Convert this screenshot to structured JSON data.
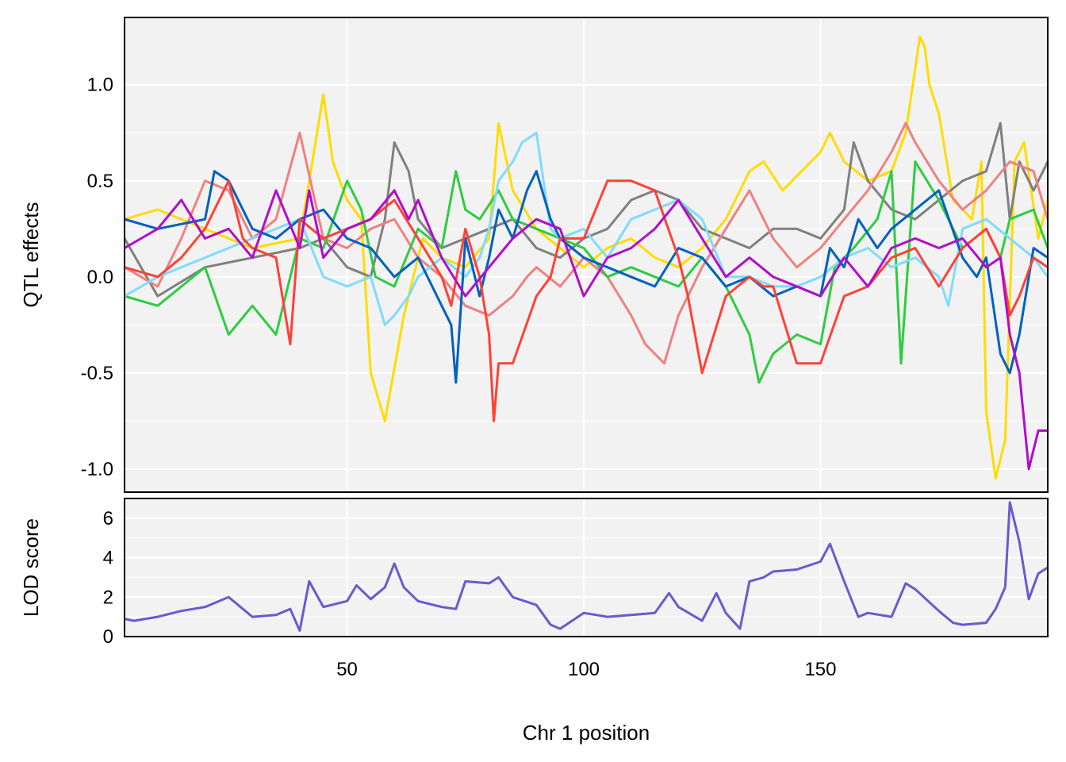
{
  "chart_data": [
    {
      "type": "line",
      "title": "",
      "xlabel": "",
      "ylabel": "QTL effects",
      "xlim": [
        3,
        198
      ],
      "ylim": [
        -1.12,
        1.35
      ],
      "yticks": [
        1.0,
        0.5,
        0.0,
        -0.5,
        -1.0
      ],
      "ytick_labels": [
        "1.0",
        "0.5",
        "0.0",
        "-0.5",
        "-1.0"
      ],
      "grid": true,
      "legend": "none",
      "series": [
        {
          "color": "#FFDC00",
          "x": [
            3,
            10,
            20,
            30,
            40,
            43,
            45,
            47,
            50,
            53,
            55,
            58,
            62,
            66,
            70,
            75,
            80,
            82,
            85,
            90,
            95,
            100,
            105,
            110,
            115,
            120,
            125,
            130,
            133,
            135,
            138,
            142,
            146,
            150,
            152,
            155,
            160,
            165,
            168,
            171,
            172,
            173,
            175,
            178,
            182,
            184,
            185,
            187,
            189,
            191,
            193,
            196,
            198
          ],
          "y": [
            0.3,
            0.35,
            0.25,
            0.15,
            0.2,
            0.65,
            0.95,
            0.6,
            0.4,
            0.3,
            -0.5,
            -0.75,
            -0.2,
            0.2,
            0.1,
            0.05,
            0.2,
            0.8,
            0.45,
            0.25,
            0.15,
            0.05,
            0.15,
            0.2,
            0.1,
            0.05,
            0.15,
            0.3,
            0.45,
            0.55,
            0.6,
            0.45,
            0.55,
            0.65,
            0.75,
            0.6,
            0.5,
            0.55,
            0.75,
            1.25,
            1.2,
            1.0,
            0.85,
            0.4,
            0.3,
            0.6,
            -0.7,
            -1.05,
            -0.85,
            0.6,
            0.7,
            0.2,
            0.4
          ]
        },
        {
          "color": "#808080",
          "x": [
            3,
            10,
            20,
            30,
            40,
            45,
            50,
            55,
            58,
            60,
            63,
            65,
            70,
            75,
            80,
            85,
            90,
            95,
            100,
            105,
            110,
            115,
            120,
            125,
            130,
            135,
            140,
            145,
            150,
            155,
            157,
            160,
            165,
            170,
            175,
            180,
            185,
            188,
            190,
            192,
            195,
            198
          ],
          "y": [
            0.2,
            -0.1,
            0.05,
            0.1,
            0.15,
            0.2,
            0.05,
            0.0,
            0.3,
            0.7,
            0.55,
            0.3,
            0.15,
            0.2,
            0.25,
            0.3,
            0.15,
            0.1,
            0.2,
            0.25,
            0.4,
            0.45,
            0.4,
            0.25,
            0.2,
            0.15,
            0.25,
            0.25,
            0.2,
            0.35,
            0.7,
            0.5,
            0.35,
            0.3,
            0.4,
            0.5,
            0.55,
            0.8,
            0.3,
            0.6,
            0.45,
            0.6
          ]
        },
        {
          "color": "#F08080",
          "x": [
            3,
            10,
            15,
            20,
            25,
            30,
            35,
            40,
            45,
            50,
            55,
            60,
            65,
            70,
            75,
            80,
            85,
            88,
            90,
            95,
            100,
            105,
            110,
            113,
            117,
            120,
            125,
            130,
            135,
            140,
            145,
            150,
            155,
            160,
            165,
            168,
            170,
            175,
            180,
            185,
            190,
            195,
            198
          ],
          "y": [
            0.05,
            -0.05,
            0.2,
            0.5,
            0.45,
            0.2,
            0.3,
            0.75,
            0.2,
            0.15,
            0.25,
            0.3,
            0.1,
            0.0,
            -0.15,
            -0.2,
            -0.1,
            0.0,
            0.05,
            -0.05,
            0.1,
            0.0,
            -0.2,
            -0.35,
            -0.45,
            -0.2,
            0.05,
            0.25,
            0.45,
            0.2,
            0.05,
            0.15,
            0.3,
            0.45,
            0.65,
            0.8,
            0.7,
            0.5,
            0.35,
            0.45,
            0.6,
            0.55,
            0.3
          ]
        },
        {
          "color": "#2ECC40",
          "x": [
            3,
            10,
            20,
            25,
            30,
            35,
            40,
            45,
            50,
            53,
            56,
            60,
            65,
            70,
            73,
            75,
            78,
            82,
            85,
            90,
            95,
            100,
            105,
            110,
            115,
            120,
            125,
            130,
            135,
            137,
            140,
            145,
            150,
            153,
            157,
            162,
            165,
            167,
            170,
            175,
            180,
            185,
            188,
            190,
            195,
            198
          ],
          "y": [
            -0.1,
            -0.15,
            0.05,
            -0.3,
            -0.15,
            -0.3,
            0.2,
            0.15,
            0.5,
            0.35,
            0.0,
            -0.05,
            0.25,
            0.15,
            0.55,
            0.35,
            0.3,
            0.45,
            0.3,
            0.25,
            0.2,
            0.15,
            0.0,
            0.05,
            0.0,
            -0.05,
            0.1,
            -0.05,
            -0.3,
            -0.55,
            -0.4,
            -0.3,
            -0.35,
            0.05,
            0.15,
            0.3,
            0.55,
            -0.45,
            0.6,
            0.4,
            0.15,
            0.25,
            0.1,
            0.3,
            0.35,
            0.15
          ]
        },
        {
          "color": "#7FDBFF",
          "x": [
            3,
            10,
            20,
            30,
            40,
            45,
            50,
            55,
            58,
            60,
            63,
            65,
            70,
            75,
            78,
            80,
            82,
            85,
            87,
            90,
            93,
            95,
            100,
            105,
            110,
            115,
            120,
            125,
            130,
            135,
            140,
            145,
            150,
            155,
            160,
            165,
            170,
            175,
            177,
            180,
            185,
            190,
            195,
            198
          ],
          "y": [
            -0.1,
            0.0,
            0.1,
            0.2,
            0.3,
            0.0,
            -0.05,
            0.0,
            -0.25,
            -0.2,
            -0.1,
            0.0,
            0.1,
            0.0,
            0.1,
            0.25,
            0.5,
            0.6,
            0.7,
            0.75,
            0.25,
            0.2,
            0.25,
            0.1,
            0.3,
            0.35,
            0.4,
            0.3,
            0.0,
            0.0,
            -0.05,
            -0.05,
            0.0,
            0.1,
            0.15,
            0.05,
            0.1,
            0.0,
            -0.15,
            0.25,
            0.3,
            0.2,
            0.1,
            0.0
          ]
        },
        {
          "color": "#0060C0",
          "x": [
            3,
            10,
            20,
            22,
            25,
            30,
            35,
            40,
            45,
            50,
            55,
            60,
            65,
            70,
            72,
            73,
            75,
            78,
            80,
            82,
            85,
            88,
            90,
            93,
            95,
            100,
            105,
            110,
            115,
            120,
            125,
            130,
            135,
            140,
            145,
            150,
            152,
            155,
            158,
            162,
            165,
            170,
            175,
            180,
            183,
            185,
            188,
            190,
            192,
            195,
            198
          ],
          "y": [
            0.3,
            0.25,
            0.3,
            0.55,
            0.5,
            0.25,
            0.2,
            0.3,
            0.35,
            0.2,
            0.15,
            0.0,
            0.1,
            -0.15,
            -0.25,
            -0.55,
            0.2,
            -0.1,
            0.1,
            0.35,
            0.2,
            0.45,
            0.55,
            0.3,
            0.2,
            0.1,
            0.05,
            0.0,
            -0.05,
            0.15,
            0.1,
            -0.05,
            0.0,
            -0.1,
            -0.05,
            -0.1,
            0.15,
            0.05,
            0.3,
            0.15,
            0.25,
            0.35,
            0.45,
            0.1,
            0.0,
            0.1,
            -0.4,
            -0.5,
            -0.3,
            0.15,
            0.1
          ]
        },
        {
          "color": "#FF4136",
          "x": [
            3,
            10,
            15,
            20,
            25,
            28,
            30,
            35,
            38,
            40,
            45,
            50,
            55,
            60,
            65,
            70,
            72,
            75,
            78,
            80,
            81,
            82,
            85,
            90,
            93,
            95,
            100,
            105,
            110,
            115,
            120,
            122,
            125,
            130,
            135,
            138,
            140,
            145,
            150,
            155,
            160,
            165,
            170,
            175,
            180,
            185,
            188,
            190,
            192,
            195,
            198
          ],
          "y": [
            0.05,
            0.0,
            0.1,
            0.25,
            0.5,
            0.2,
            0.15,
            0.1,
            -0.35,
            0.3,
            0.2,
            0.25,
            0.3,
            0.4,
            0.2,
            0.0,
            -0.15,
            0.25,
            0.0,
            -0.3,
            -0.75,
            -0.45,
            -0.45,
            -0.1,
            0.0,
            0.2,
            0.2,
            0.5,
            0.5,
            0.45,
            0.1,
            -0.1,
            -0.5,
            -0.1,
            0.0,
            -0.05,
            -0.05,
            -0.45,
            -0.45,
            -0.1,
            -0.05,
            0.1,
            0.15,
            -0.05,
            0.15,
            0.25,
            0.1,
            -0.2,
            -0.1,
            0.1,
            0.05
          ]
        },
        {
          "color": "#B10DC9",
          "x": [
            3,
            10,
            15,
            20,
            25,
            30,
            35,
            40,
            42,
            45,
            50,
            55,
            60,
            63,
            65,
            70,
            75,
            80,
            85,
            90,
            95,
            100,
            105,
            110,
            115,
            120,
            125,
            130,
            135,
            140,
            145,
            150,
            155,
            160,
            165,
            170,
            175,
            180,
            185,
            188,
            190,
            192,
            194,
            196,
            198
          ],
          "y": [
            0.15,
            0.25,
            0.4,
            0.2,
            0.25,
            0.1,
            0.45,
            0.15,
            0.45,
            0.1,
            0.25,
            0.3,
            0.45,
            0.3,
            0.4,
            0.1,
            -0.1,
            0.05,
            0.2,
            0.3,
            0.25,
            -0.1,
            0.1,
            0.15,
            0.25,
            0.4,
            0.2,
            0.0,
            0.1,
            0.0,
            -0.05,
            -0.1,
            0.1,
            -0.05,
            0.15,
            0.2,
            0.15,
            0.2,
            0.05,
            0.1,
            -0.3,
            -0.5,
            -1.0,
            -0.8,
            -0.8
          ]
        }
      ]
    },
    {
      "type": "line",
      "title": "",
      "xlabel": "Chr 1 position",
      "ylabel": "LOD score",
      "xlim": [
        3,
        198
      ],
      "ylim": [
        0,
        7
      ],
      "xticks": [
        50,
        100,
        150
      ],
      "xtick_labels": [
        "50",
        "100",
        "150"
      ],
      "yticks": [
        0,
        2,
        4,
        6
      ],
      "ytick_labels": [
        "0",
        "2",
        "4",
        "6"
      ],
      "grid": true,
      "legend": "none",
      "series": [
        {
          "color": "#6A5ACD",
          "x": [
            3,
            5,
            10,
            15,
            20,
            25,
            30,
            35,
            38,
            40,
            42,
            45,
            50,
            52,
            55,
            58,
            60,
            62,
            65,
            70,
            73,
            75,
            80,
            82,
            85,
            90,
            93,
            95,
            100,
            105,
            110,
            115,
            118,
            120,
            125,
            128,
            130,
            133,
            135,
            138,
            140,
            145,
            150,
            152,
            155,
            158,
            160,
            165,
            168,
            170,
            175,
            178,
            180,
            185,
            187,
            189,
            190,
            192,
            194,
            196,
            198
          ],
          "y": [
            0.9,
            0.8,
            1.0,
            1.3,
            1.5,
            2.0,
            1.0,
            1.1,
            1.4,
            0.3,
            2.8,
            1.5,
            1.8,
            2.6,
            1.9,
            2.5,
            3.7,
            2.5,
            1.8,
            1.5,
            1.4,
            2.8,
            2.7,
            3.0,
            2.0,
            1.6,
            0.6,
            0.4,
            1.2,
            1.0,
            1.1,
            1.2,
            2.2,
            1.5,
            0.8,
            2.2,
            1.2,
            0.4,
            2.8,
            3.0,
            3.3,
            3.4,
            3.8,
            4.7,
            2.8,
            1.0,
            1.2,
            1.0,
            2.7,
            2.4,
            1.3,
            0.7,
            0.6,
            0.7,
            1.4,
            2.5,
            6.8,
            4.8,
            1.9,
            3.2,
            3.5
          ]
        }
      ]
    }
  ]
}
